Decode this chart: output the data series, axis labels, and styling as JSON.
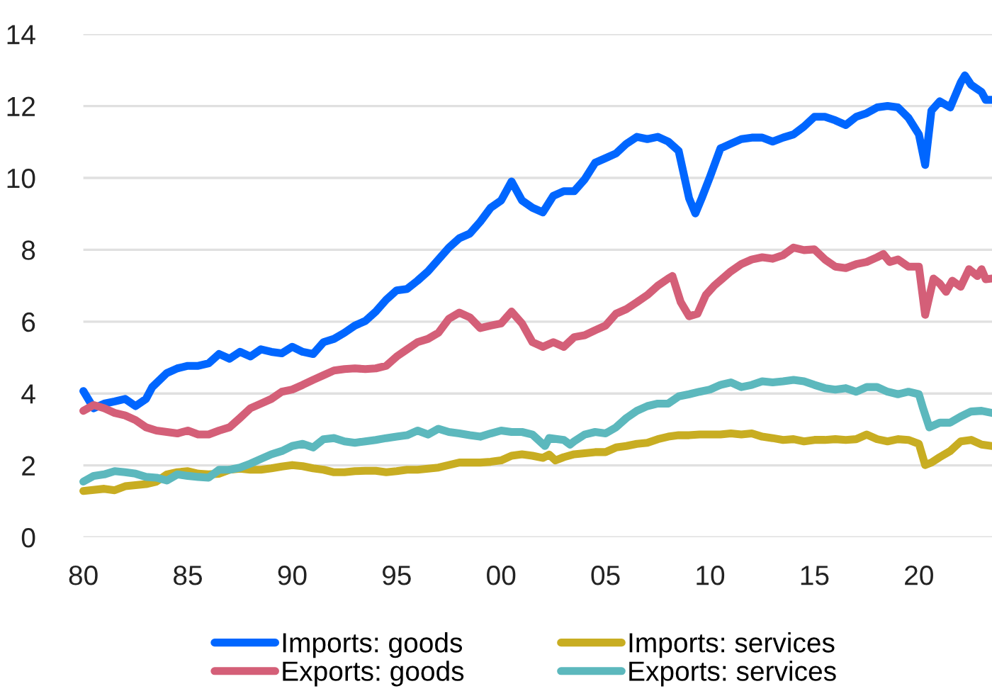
{
  "chart_data": {
    "type": "line",
    "xlim": [
      1980,
      2023.5
    ],
    "ylim": [
      0,
      14
    ],
    "xticks": [
      {
        "value": 1980,
        "label": "80"
      },
      {
        "value": 1985,
        "label": "85"
      },
      {
        "value": 1990,
        "label": "90"
      },
      {
        "value": 1995,
        "label": "95"
      },
      {
        "value": 2000,
        "label": "00"
      },
      {
        "value": 2005,
        "label": "05"
      },
      {
        "value": 2010,
        "label": "10"
      },
      {
        "value": 2015,
        "label": "15"
      },
      {
        "value": 2020,
        "label": "20"
      }
    ],
    "yticks": [
      0,
      2,
      4,
      6,
      8,
      10,
      12,
      14
    ],
    "grid": "y",
    "legend": "bottom",
    "marker": "none",
    "line_style": "solid",
    "series": [
      {
        "name": "Imports: goods",
        "color": "#0066ff",
        "x": [
          1980,
          1980.5,
          1981,
          1981.5,
          1982,
          1982.5,
          1983,
          1983.3,
          1984,
          1984.5,
          1985,
          1985.5,
          1986,
          1986.5,
          1987,
          1987.5,
          1988,
          1988.5,
          1989,
          1989.5,
          1990,
          1990.5,
          1991,
          1991.5,
          1992,
          1992.5,
          1993,
          1993.5,
          1994,
          1994.5,
          1995,
          1995.5,
          1996,
          1996.5,
          1997,
          1997.5,
          1998,
          1998.5,
          1999,
          1999.5,
          2000,
          2000.5,
          2001,
          2001.5,
          2002,
          2002.5,
          2003,
          2003.5,
          2004,
          2004.5,
          2005,
          2005.5,
          2006,
          2006.5,
          2007,
          2007.5,
          2008,
          2008.5,
          2009,
          2009.3,
          2009.6,
          2010,
          2010.5,
          2011,
          2011.5,
          2012,
          2012.5,
          2013,
          2013.5,
          2014,
          2014.5,
          2015,
          2015.5,
          2016,
          2016.5,
          2017,
          2017.5,
          2018,
          2018.5,
          2019,
          2019.5,
          2020,
          2020.3,
          2020.6,
          2021,
          2021.5,
          2022,
          2022.2,
          2022.5,
          2023,
          2023.2,
          2023.5
        ],
        "values": [
          4.07,
          3.59,
          3.72,
          3.78,
          3.85,
          3.65,
          3.85,
          4.18,
          4.57,
          4.7,
          4.77,
          4.77,
          4.84,
          5.1,
          4.97,
          5.16,
          5.03,
          5.23,
          5.16,
          5.12,
          5.3,
          5.16,
          5.1,
          5.43,
          5.52,
          5.69,
          5.89,
          6.02,
          6.28,
          6.61,
          6.87,
          6.91,
          7.14,
          7.4,
          7.73,
          8.06,
          8.32,
          8.45,
          8.78,
          9.17,
          9.37,
          9.9,
          9.37,
          9.17,
          9.04,
          9.5,
          9.63,
          9.63,
          9.96,
          10.42,
          10.55,
          10.68,
          10.95,
          11.14,
          11.08,
          11.14,
          11.01,
          10.75,
          9.43,
          9.01,
          9.43,
          10.03,
          10.82,
          10.95,
          11.08,
          11.12,
          11.12,
          11.01,
          11.12,
          11.21,
          11.43,
          11.7,
          11.7,
          11.6,
          11.47,
          11.7,
          11.8,
          11.96,
          12.0,
          11.96,
          11.67,
          11.21,
          10.36,
          11.87,
          12.13,
          11.96,
          12.65,
          12.85,
          12.59,
          12.39,
          12.17,
          12.17
        ]
      },
      {
        "name": "Imports: services",
        "color": "#c8ad22",
        "x": [
          1980,
          1981,
          1981.5,
          1982,
          1982.5,
          1983,
          1983.5,
          1984,
          1984.5,
          1985,
          1985.5,
          1986,
          1986.5,
          1987,
          1987.5,
          1988,
          1988.5,
          1989,
          1989.5,
          1990,
          1990.5,
          1991,
          1991.5,
          1992,
          1992.5,
          1993,
          1993.5,
          1994,
          1994.5,
          1995,
          1995.5,
          1996,
          1996.5,
          1997,
          1997.5,
          1998,
          1998.5,
          1999,
          1999.5,
          2000,
          2000.5,
          2001,
          2001.5,
          2002,
          2002.3,
          2002.6,
          2003,
          2003.5,
          2004,
          2004.5,
          2005,
          2005.5,
          2006,
          2006.5,
          2007,
          2007.5,
          2008,
          2008.5,
          2009,
          2009.5,
          2010,
          2010.5,
          2011,
          2011.5,
          2012,
          2012.5,
          2013,
          2013.5,
          2014,
          2014.5,
          2015,
          2015.5,
          2016,
          2016.5,
          2017,
          2017.5,
          2018,
          2018.5,
          2019,
          2019.5,
          2020,
          2020.3,
          2020.6,
          2021,
          2021.5,
          2022,
          2022.5,
          2023,
          2023.5
        ],
        "values": [
          1.29,
          1.35,
          1.31,
          1.42,
          1.45,
          1.48,
          1.55,
          1.75,
          1.81,
          1.84,
          1.77,
          1.75,
          1.77,
          1.88,
          1.91,
          1.88,
          1.88,
          1.92,
          1.97,
          2.01,
          1.98,
          1.92,
          1.88,
          1.81,
          1.81,
          1.84,
          1.85,
          1.85,
          1.81,
          1.84,
          1.88,
          1.88,
          1.91,
          1.94,
          2.01,
          2.08,
          2.08,
          2.08,
          2.1,
          2.14,
          2.27,
          2.31,
          2.27,
          2.21,
          2.3,
          2.14,
          2.23,
          2.31,
          2.34,
          2.37,
          2.37,
          2.5,
          2.54,
          2.6,
          2.63,
          2.73,
          2.8,
          2.84,
          2.84,
          2.86,
          2.86,
          2.86,
          2.89,
          2.86,
          2.89,
          2.8,
          2.76,
          2.71,
          2.73,
          2.67,
          2.71,
          2.71,
          2.73,
          2.71,
          2.73,
          2.86,
          2.73,
          2.67,
          2.73,
          2.71,
          2.6,
          2.01,
          2.08,
          2.23,
          2.4,
          2.67,
          2.71,
          2.58,
          2.54
        ]
      },
      {
        "name": "Exports: goods",
        "color": "#d45f78",
        "x": [
          1980,
          1980.5,
          1981,
          1981.5,
          1982,
          1982.5,
          1983,
          1983.5,
          1984,
          1984.5,
          1985,
          1985.5,
          1986,
          1986.5,
          1987,
          1987.5,
          1988,
          1988.5,
          1989,
          1989.5,
          1990,
          1990.5,
          1991,
          1991.5,
          1992,
          1992.5,
          1993,
          1993.5,
          1994,
          1994.5,
          1995,
          1995.5,
          1996,
          1996.5,
          1997,
          1997.5,
          1998,
          1998.5,
          1999,
          1999.5,
          2000,
          2000.5,
          2001,
          2001.5,
          2002,
          2002.5,
          2003,
          2003.5,
          2004,
          2004.5,
          2005,
          2005.5,
          2006,
          2006.5,
          2007,
          2007.5,
          2008,
          2008.2,
          2008.6,
          2009,
          2009.4,
          2009.8,
          2010.2,
          2010.6,
          2011,
          2011.5,
          2012,
          2012.5,
          2013,
          2013.5,
          2014,
          2014.5,
          2015,
          2015.5,
          2016,
          2016.5,
          2017,
          2017.5,
          2018,
          2018.3,
          2018.6,
          2019,
          2019.5,
          2020,
          2020.3,
          2020.7,
          2021,
          2021.3,
          2021.6,
          2022,
          2022.4,
          2022.8,
          2023,
          2023.2,
          2023.5
        ],
        "values": [
          3.52,
          3.68,
          3.59,
          3.46,
          3.39,
          3.26,
          3.06,
          2.97,
          2.93,
          2.89,
          2.97,
          2.86,
          2.86,
          2.97,
          3.06,
          3.32,
          3.59,
          3.72,
          3.85,
          4.05,
          4.11,
          4.24,
          4.38,
          4.51,
          4.64,
          4.68,
          4.7,
          4.68,
          4.7,
          4.77,
          5.03,
          5.23,
          5.43,
          5.52,
          5.69,
          6.08,
          6.25,
          6.12,
          5.82,
          5.89,
          5.95,
          6.28,
          5.95,
          5.43,
          5.3,
          5.43,
          5.3,
          5.57,
          5.62,
          5.76,
          5.89,
          6.22,
          6.35,
          6.54,
          6.74,
          7.0,
          7.2,
          7.27,
          6.54,
          6.15,
          6.22,
          6.74,
          7.0,
          7.2,
          7.4,
          7.6,
          7.73,
          7.79,
          7.75,
          7.85,
          8.06,
          7.99,
          8.01,
          7.73,
          7.53,
          7.49,
          7.6,
          7.66,
          7.79,
          7.88,
          7.66,
          7.73,
          7.53,
          7.53,
          6.19,
          7.2,
          7.06,
          6.83,
          7.14,
          6.97,
          7.46,
          7.27,
          7.46,
          7.18,
          7.2
        ]
      },
      {
        "name": "Exports: services",
        "color": "#5cb8bd",
        "x": [
          1980,
          1980.5,
          1981,
          1981.5,
          1982,
          1982.5,
          1983,
          1983.5,
          1984,
          1984.5,
          1985,
          1985.5,
          1986,
          1986.5,
          1987,
          1987.5,
          1988,
          1988.5,
          1989,
          1989.5,
          1990,
          1990.5,
          1991,
          1991.5,
          1992,
          1992.5,
          1993,
          1993.5,
          1994,
          1994.5,
          1995,
          1995.5,
          1996,
          1996.5,
          1997,
          1997.5,
          1998,
          1998.5,
          1999,
          1999.5,
          2000,
          2000.5,
          2001,
          2001.5,
          2002.1,
          2002.3,
          2003,
          2003.3,
          2003.5,
          2004,
          2004.5,
          2005,
          2005.5,
          2006,
          2006.5,
          2007,
          2007.5,
          2008,
          2008.5,
          2009,
          2009.5,
          2010,
          2010.5,
          2011,
          2011.5,
          2012,
          2012.5,
          2013,
          2013.5,
          2014,
          2014.5,
          2015,
          2015.5,
          2016,
          2016.5,
          2017,
          2017.5,
          2018,
          2018.5,
          2019,
          2019.5,
          2020,
          2020.2,
          2020.5,
          2021,
          2021.5,
          2022,
          2022.5,
          2023,
          2023.5
        ],
        "values": [
          1.55,
          1.71,
          1.75,
          1.84,
          1.81,
          1.77,
          1.68,
          1.66,
          1.58,
          1.75,
          1.71,
          1.68,
          1.66,
          1.88,
          1.88,
          1.94,
          2.05,
          2.18,
          2.31,
          2.4,
          2.54,
          2.6,
          2.5,
          2.73,
          2.76,
          2.67,
          2.63,
          2.67,
          2.71,
          2.76,
          2.8,
          2.84,
          2.97,
          2.86,
          3.02,
          2.93,
          2.89,
          2.84,
          2.8,
          2.89,
          2.97,
          2.93,
          2.93,
          2.86,
          2.54,
          2.76,
          2.71,
          2.58,
          2.67,
          2.86,
          2.93,
          2.89,
          3.06,
          3.32,
          3.52,
          3.65,
          3.72,
          3.72,
          3.92,
          3.98,
          4.05,
          4.11,
          4.24,
          4.31,
          4.18,
          4.24,
          4.34,
          4.31,
          4.34,
          4.38,
          4.34,
          4.24,
          4.15,
          4.11,
          4.15,
          4.05,
          4.18,
          4.18,
          4.05,
          3.98,
          4.05,
          3.98,
          3.59,
          3.06,
          3.19,
          3.19,
          3.36,
          3.5,
          3.52,
          3.46
        ]
      }
    ]
  }
}
